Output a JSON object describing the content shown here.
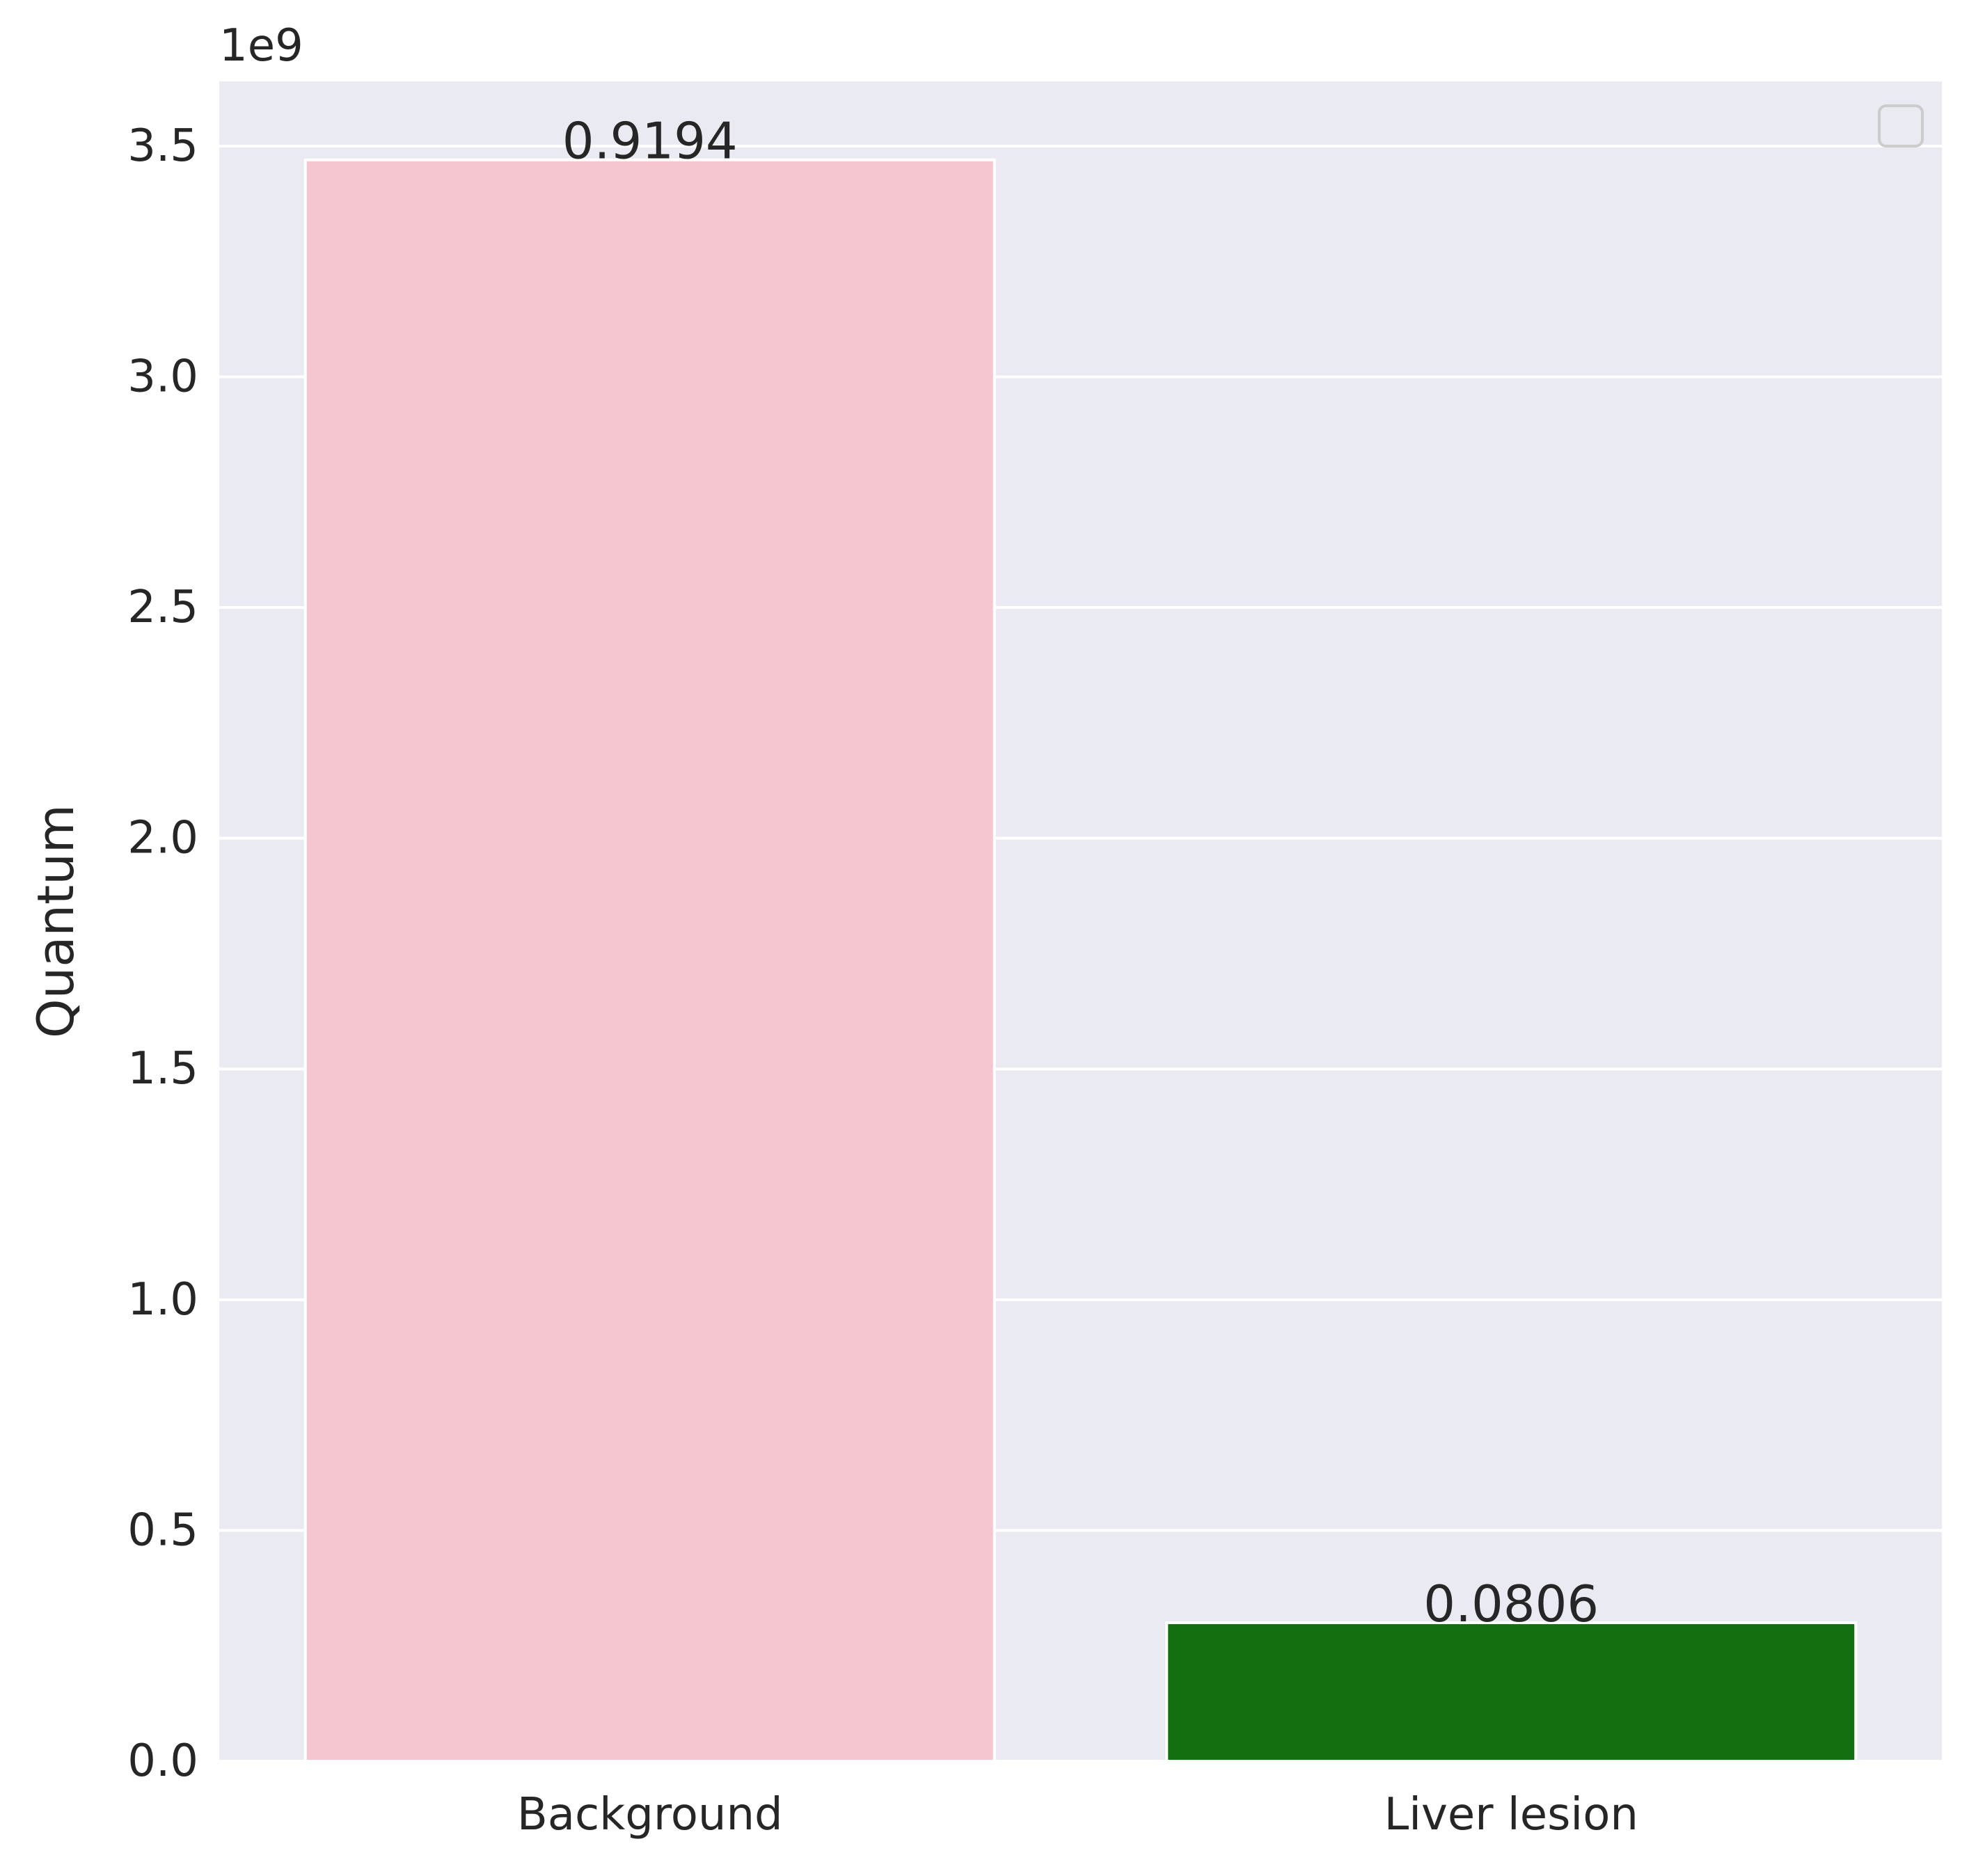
{
  "chart_data": {
    "type": "bar",
    "categories": [
      "Background",
      "Liver lesion"
    ],
    "values": [
      3470000000,
      300000000
    ],
    "data_labels": [
      "0.9194",
      "0.0806"
    ],
    "bar_colors": [
      "#f5c6cf",
      "#127012"
    ],
    "xlabel": "",
    "ylabel": "Quantum",
    "ylim": [
      0,
      3640000000
    ],
    "yticks": [
      0,
      500000000,
      1000000000,
      1500000000,
      2000000000,
      2500000000,
      3000000000,
      3500000000
    ],
    "ytick_labels": [
      "0.0",
      "0.5",
      "1.0",
      "1.5",
      "2.0",
      "2.5",
      "3.0",
      "3.5"
    ],
    "offset_text": "1e9",
    "grid": true,
    "legend": {
      "visible": true,
      "position": "top-right",
      "entries": []
    },
    "colors": {
      "plot_background": "#eaeaf2",
      "grid": "#ffffff",
      "text": "#262626",
      "legend_border": "#cccccc"
    }
  }
}
